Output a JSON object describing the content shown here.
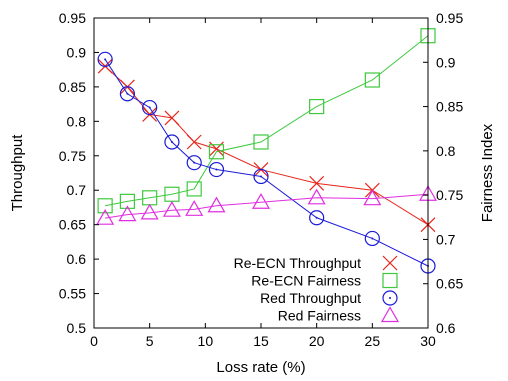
{
  "chart_data": {
    "type": "line",
    "title": "",
    "xlabel": "Loss rate (%)",
    "ylabel": "Throughput",
    "y2label": "Fairness Index",
    "xlim": [
      0,
      30
    ],
    "ylim": [
      0.5,
      0.95
    ],
    "y2lim": [
      0.6,
      0.95
    ],
    "xticks": [
      "0",
      "5",
      "10",
      "15",
      "20",
      "25",
      "30"
    ],
    "yticks": [
      "0.5",
      "0.55",
      "0.6",
      "0.65",
      "0.7",
      "0.75",
      "0.8",
      "0.85",
      "0.9",
      "0.95"
    ],
    "y2ticks": [
      "0.6",
      "0.65",
      "0.7",
      "0.75",
      "0.8",
      "0.85",
      "0.9",
      "0.95"
    ],
    "grid": false,
    "legend_position": "bottom-right",
    "series": [
      {
        "name": "Re-ECN Throughput",
        "axis": "left",
        "marker": "x",
        "color": "#e8261c",
        "x": [
          1,
          3,
          5,
          7,
          9,
          11,
          15,
          20,
          25,
          30
        ],
        "values": [
          0.88,
          0.85,
          0.81,
          0.805,
          0.77,
          0.76,
          0.73,
          0.71,
          0.7,
          0.65
        ]
      },
      {
        "name": "Re-ECN Fairness",
        "axis": "right",
        "marker": "square",
        "color": "#3ec93e",
        "x": [
          1,
          3,
          5,
          7,
          9,
          11,
          15,
          20,
          25,
          30
        ],
        "values": [
          0.738,
          0.743,
          0.747,
          0.751,
          0.757,
          0.799,
          0.81,
          0.85,
          0.88,
          0.93
        ]
      },
      {
        "name": "Red Throughput",
        "axis": "left",
        "marker": "circle",
        "color": "#1b1bd6",
        "x": [
          1,
          3,
          5,
          7,
          9,
          11,
          15,
          20,
          25,
          30
        ],
        "values": [
          0.89,
          0.84,
          0.82,
          0.77,
          0.74,
          0.73,
          0.72,
          0.66,
          0.63,
          0.59
        ]
      },
      {
        "name": "Red Fairness",
        "axis": "right",
        "marker": "triangle",
        "color": "#e02ee0",
        "x": [
          1,
          3,
          5,
          7,
          9,
          11,
          15,
          20,
          25,
          30
        ],
        "values": [
          0.724,
          0.728,
          0.73,
          0.733,
          0.734,
          0.738,
          0.742,
          0.747,
          0.746,
          0.751
        ]
      }
    ]
  }
}
